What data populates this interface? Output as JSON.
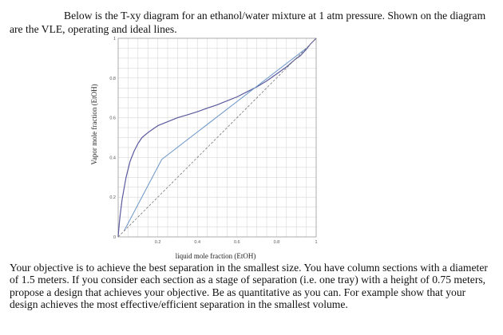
{
  "intro_text": "Below is the T-xy diagram for an ethanol/water mixture at 1 atm pressure.  Shown on the diagram are the VLE, operating and ideal lines.",
  "question_text": "Your objective is to achieve the best separation in the smallest size.  You have column sections with a diameter of 1.5 meters.  If you consider each section as a stage of separation (i.e. one tray) with a height of 0.75 meters, propose a design that achieves your objective.  Be as quantitative as you can.  For example show that your design achieves the most effective/efficient separation in the smallest volume.",
  "chart_data": {
    "type": "line",
    "xlabel": "liquid mole fraction (EtOH)",
    "ylabel": "Vapor mole fraction (EtOH)",
    "xlim": [
      0,
      1
    ],
    "ylim": [
      0,
      1
    ],
    "x_ticks": [
      "0",
      "0.2",
      "0.4",
      "0.6",
      "0.8",
      "1"
    ],
    "y_ticks": [
      "0",
      "0.2",
      "0.4",
      "0.6",
      "0.8",
      "1"
    ],
    "grid": true,
    "colors": {
      "curve": "#5a5a9e",
      "operating": "#6a96c8",
      "ideal": "#777777",
      "grid": "#d2d2d2"
    },
    "series": [
      {
        "key": "vle",
        "x": [
          0,
          0.005,
          0.01,
          0.02,
          0.04,
          0.06,
          0.08,
          0.1,
          0.12,
          0.15,
          0.2,
          0.25,
          0.3,
          0.35,
          0.4,
          0.45,
          0.5,
          0.55,
          0.6,
          0.65,
          0.7,
          0.75,
          0.8,
          0.85,
          0.894,
          0.92,
          0.95,
          0.97,
          1.0
        ],
        "y": [
          0,
          0.06,
          0.11,
          0.19,
          0.3,
          0.38,
          0.43,
          0.47,
          0.5,
          0.525,
          0.56,
          0.58,
          0.6,
          0.615,
          0.63,
          0.648,
          0.665,
          0.685,
          0.705,
          0.73,
          0.755,
          0.785,
          0.82,
          0.856,
          0.894,
          0.912,
          0.944,
          0.97,
          1.0
        ]
      },
      {
        "key": "operating",
        "x": [
          0.03,
          0.22,
          0.95
        ],
        "y": [
          0.03,
          0.39,
          0.95
        ]
      },
      {
        "key": "ideal",
        "x": [
          0,
          1
        ],
        "y": [
          0,
          1
        ]
      }
    ]
  }
}
